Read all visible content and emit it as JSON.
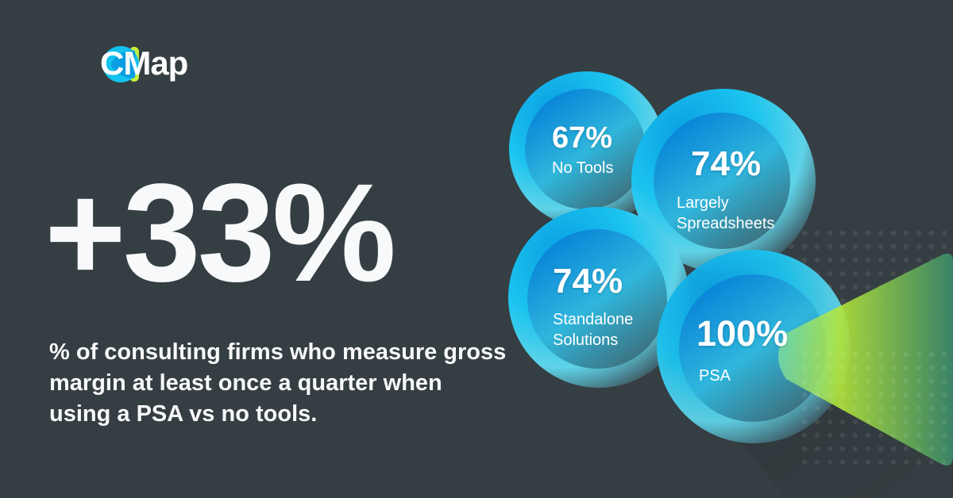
{
  "brand": {
    "name": "CMap",
    "colors": {
      "logo_blue": "#13c2ee",
      "logo_inner": "#0a9de0",
      "logo_green": "#c6ef3c"
    }
  },
  "headline": {
    "value": "+33%",
    "description": "% of consulting firms who measure gross margin at least once a quarter when using a PSA vs no tools."
  },
  "stats": [
    {
      "value": "67%",
      "label": "No Tools"
    },
    {
      "value": "74%",
      "label": "Largely Spreadsheets"
    },
    {
      "value": "74%",
      "label": "Standalone Solutions"
    },
    {
      "value": "100%",
      "label": "PSA"
    }
  ],
  "colors": {
    "background": "#353e42",
    "bubble": "#14b4e8",
    "accent_green": "#b7e83a"
  }
}
